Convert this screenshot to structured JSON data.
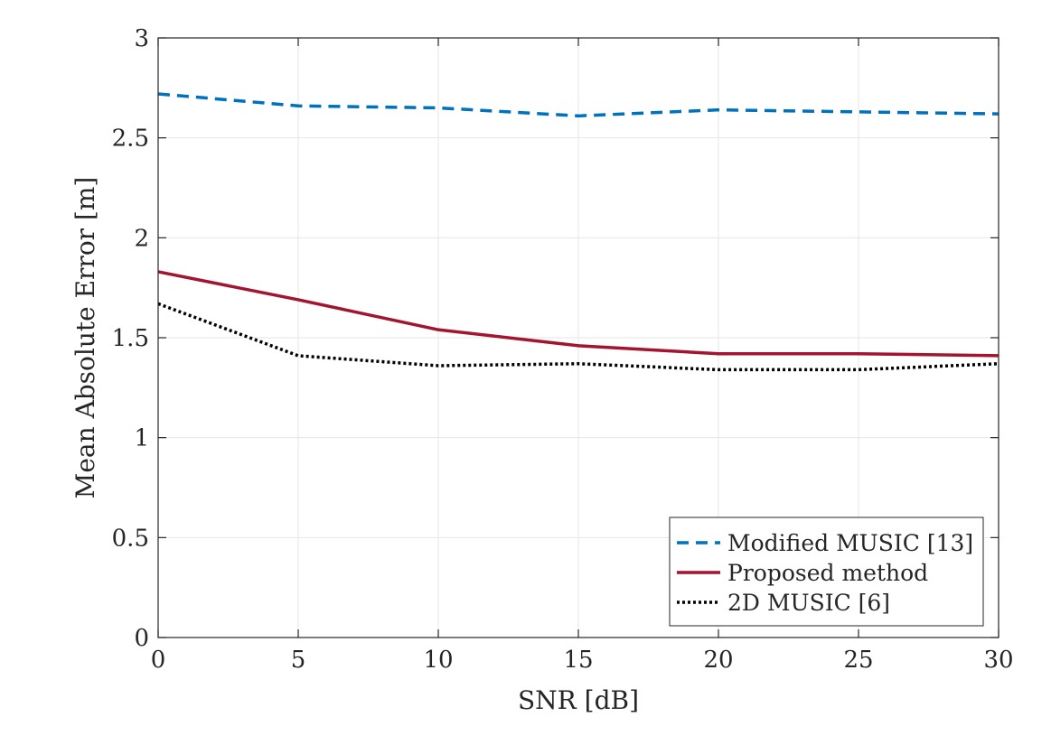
{
  "chart_data": {
    "type": "line",
    "title": "",
    "xlabel": "SNR [dB]",
    "ylabel": "Mean Absolute Error [m]",
    "xlim": [
      0,
      30
    ],
    "ylim": [
      0,
      3
    ],
    "xticks": [
      0,
      5,
      10,
      15,
      20,
      25,
      30
    ],
    "yticks": [
      0,
      0.5,
      1,
      1.5,
      2,
      2.5,
      3
    ],
    "xtick_labels": [
      "0",
      "5",
      "10",
      "15",
      "20",
      "25",
      "30"
    ],
    "ytick_labels": [
      "0",
      "0.5",
      "1",
      "1.5",
      "2",
      "2.5",
      "3"
    ],
    "grid": true,
    "legend_location": "bottom-right",
    "x": [
      0,
      5,
      10,
      15,
      20,
      25,
      30
    ],
    "series": [
      {
        "name": "Modified MUSIC [13]",
        "color": "#0072BD",
        "style": "dashed",
        "values": [
          2.72,
          2.66,
          2.65,
          2.61,
          2.64,
          2.63,
          2.62
        ]
      },
      {
        "name": "Proposed method",
        "color": "#A2142F",
        "style": "solid",
        "values": [
          1.83,
          1.69,
          1.54,
          1.46,
          1.42,
          1.42,
          1.41
        ]
      },
      {
        "name": "2D MUSIC [6]",
        "color": "#000000",
        "style": "dotted",
        "values": [
          1.67,
          1.41,
          1.36,
          1.37,
          1.34,
          1.34,
          1.37
        ]
      }
    ]
  }
}
